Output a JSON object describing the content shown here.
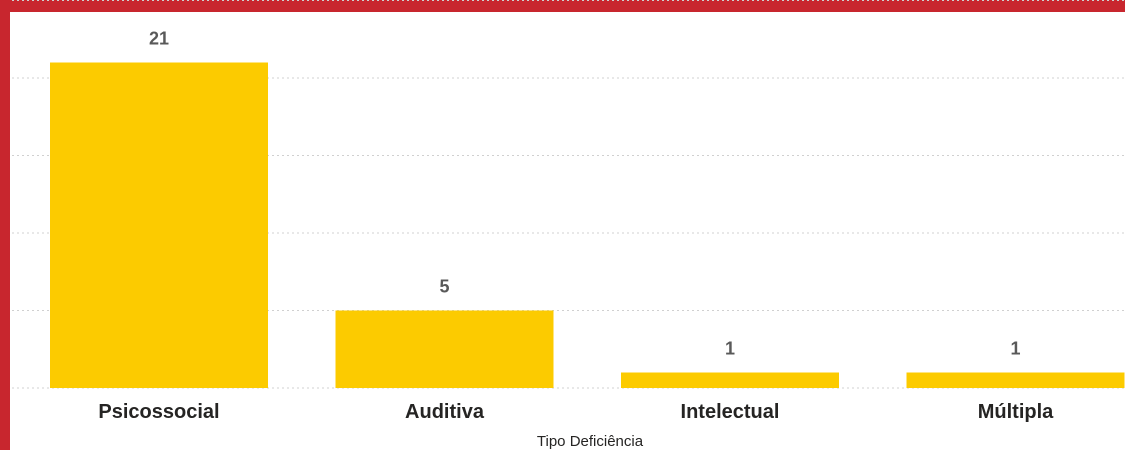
{
  "colors": {
    "frame": "#C8262E",
    "bar": "#FCCB00",
    "gridline": "#D0D0D0"
  },
  "chart_data": {
    "type": "bar",
    "categories": [
      "Psicossocial",
      "Auditiva",
      "Intelectual",
      "Múltipla"
    ],
    "values": [
      21,
      5,
      1,
      1
    ],
    "data_labels": [
      "21",
      "5",
      "1",
      "1"
    ],
    "xlabel": "Tipo Deficiência",
    "ylabel": "",
    "ylim": [
      0,
      25
    ],
    "grid": true,
    "legend": "none"
  }
}
